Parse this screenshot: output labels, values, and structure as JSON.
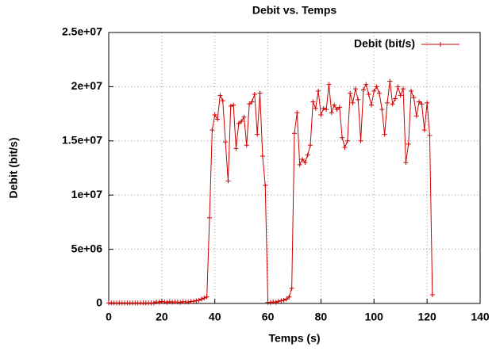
{
  "chart_data": {
    "type": "line",
    "title": "Debit vs. Temps",
    "x_label": "Temps (s)",
    "y_label": "Debit (bit/s)",
    "x": [
      0,
      1,
      2,
      3,
      4,
      5,
      6,
      7,
      8,
      9,
      10,
      11,
      12,
      13,
      14,
      15,
      16,
      17,
      18,
      19,
      20,
      21,
      22,
      23,
      24,
      25,
      26,
      27,
      28,
      29,
      30,
      31,
      32,
      33,
      34,
      35,
      36,
      37,
      38,
      39,
      40,
      41,
      42,
      43,
      44,
      45,
      46,
      47,
      48,
      49,
      50,
      51,
      52,
      53,
      54,
      55,
      56,
      57,
      58,
      59,
      60,
      61,
      62,
      63,
      64,
      65,
      66,
      67,
      68,
      69,
      70,
      71,
      72,
      73,
      74,
      75,
      76,
      77,
      78,
      79,
      80,
      81,
      82,
      83,
      84,
      85,
      86,
      87,
      88,
      89,
      90,
      91,
      92,
      93,
      94,
      95,
      96,
      97,
      98,
      99,
      100,
      101,
      102,
      103,
      104,
      105,
      106,
      107,
      108,
      109,
      110,
      111,
      112,
      113,
      114,
      115,
      116,
      117,
      118,
      119,
      120,
      121,
      122
    ],
    "series": [
      {
        "name": "Debit (bit/s)",
        "color": "#d00000",
        "values": [
          50000,
          50000,
          50000,
          50000,
          50000,
          50000,
          50000,
          50000,
          50000,
          50000,
          50000,
          50000,
          50000,
          50000,
          50000,
          50000,
          50000,
          50000,
          150000,
          120000,
          180000,
          150000,
          100000,
          160000,
          120000,
          150000,
          130000,
          100000,
          160000,
          140000,
          120000,
          180000,
          200000,
          250000,
          300000,
          400000,
          500000,
          600000,
          7900000,
          16000000,
          17400000,
          17000000,
          19200000,
          18700000,
          14900000,
          11300000,
          18200000,
          18300000,
          14300000,
          16600000,
          16800000,
          17200000,
          14600000,
          18400000,
          18600000,
          19300000,
          15600000,
          19400000,
          13600000,
          10900000,
          100000,
          100000,
          150000,
          100000,
          200000,
          250000,
          300000,
          400000,
          600000,
          1400000,
          15700000,
          17600000,
          12800000,
          13300000,
          13000000,
          13700000,
          14600000,
          18600000,
          18000000,
          19600000,
          17400000,
          18000000,
          17900000,
          20200000,
          17600000,
          18300000,
          17900000,
          18100000,
          15300000,
          14400000,
          15000000,
          19400000,
          18500000,
          19800000,
          18800000,
          15000000,
          19700000,
          20200000,
          19300000,
          18300000,
          19600000,
          20000000,
          19400000,
          17900000,
          15600000,
          18500000,
          20500000,
          18400000,
          18900000,
          20000000,
          19200000,
          19800000,
          13000000,
          14700000,
          19600000,
          19000000,
          17300000,
          18600000,
          18400000,
          16000000,
          18500000,
          15500000,
          800000
        ]
      }
    ],
    "xlim": [
      0,
      140
    ],
    "xticks": [
      0,
      20,
      40,
      60,
      80,
      100,
      120,
      140
    ],
    "ylim": [
      0,
      25000000
    ],
    "yticks": [
      0,
      {
        "value": 5000000,
        "label": "5e+06"
      },
      {
        "value": 10000000,
        "label": "1e+07"
      },
      {
        "value": 15000000,
        "label": "1.5e+07"
      },
      {
        "value": 20000000,
        "label": "2e+07"
      },
      {
        "value": 25000000,
        "label": "2.5e+07"
      }
    ],
    "grid": true,
    "legend": "top-right"
  }
}
